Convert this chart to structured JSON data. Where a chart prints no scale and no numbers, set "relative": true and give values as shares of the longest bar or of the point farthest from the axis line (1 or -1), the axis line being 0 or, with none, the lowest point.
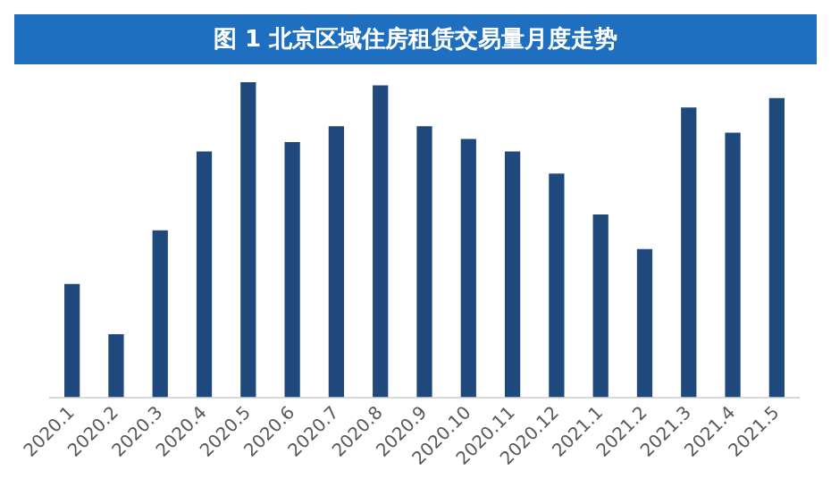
{
  "chart_data": {
    "type": "bar",
    "title": "图 1 北京区域住房租赁交易量月度走势",
    "categories": [
      "2020.1",
      "2020.2",
      "2020.3",
      "2020.4",
      "2020.5",
      "2020.6",
      "2020.7",
      "2020.8",
      "2020.9",
      "2020.10",
      "2020.11",
      "2020.12",
      "2021.1",
      "2021.2",
      "2021.3",
      "2021.4",
      "2021.5"
    ],
    "values": [
      0.36,
      0.2,
      0.53,
      0.78,
      1,
      0.81,
      0.86,
      0.99,
      0.86,
      0.82,
      0.78,
      0.71,
      0.58,
      0.47,
      0.92,
      0.84,
      0.95
    ],
    "color": "#1f497d",
    "relative": true,
    "grid": false,
    "legend": false
  }
}
